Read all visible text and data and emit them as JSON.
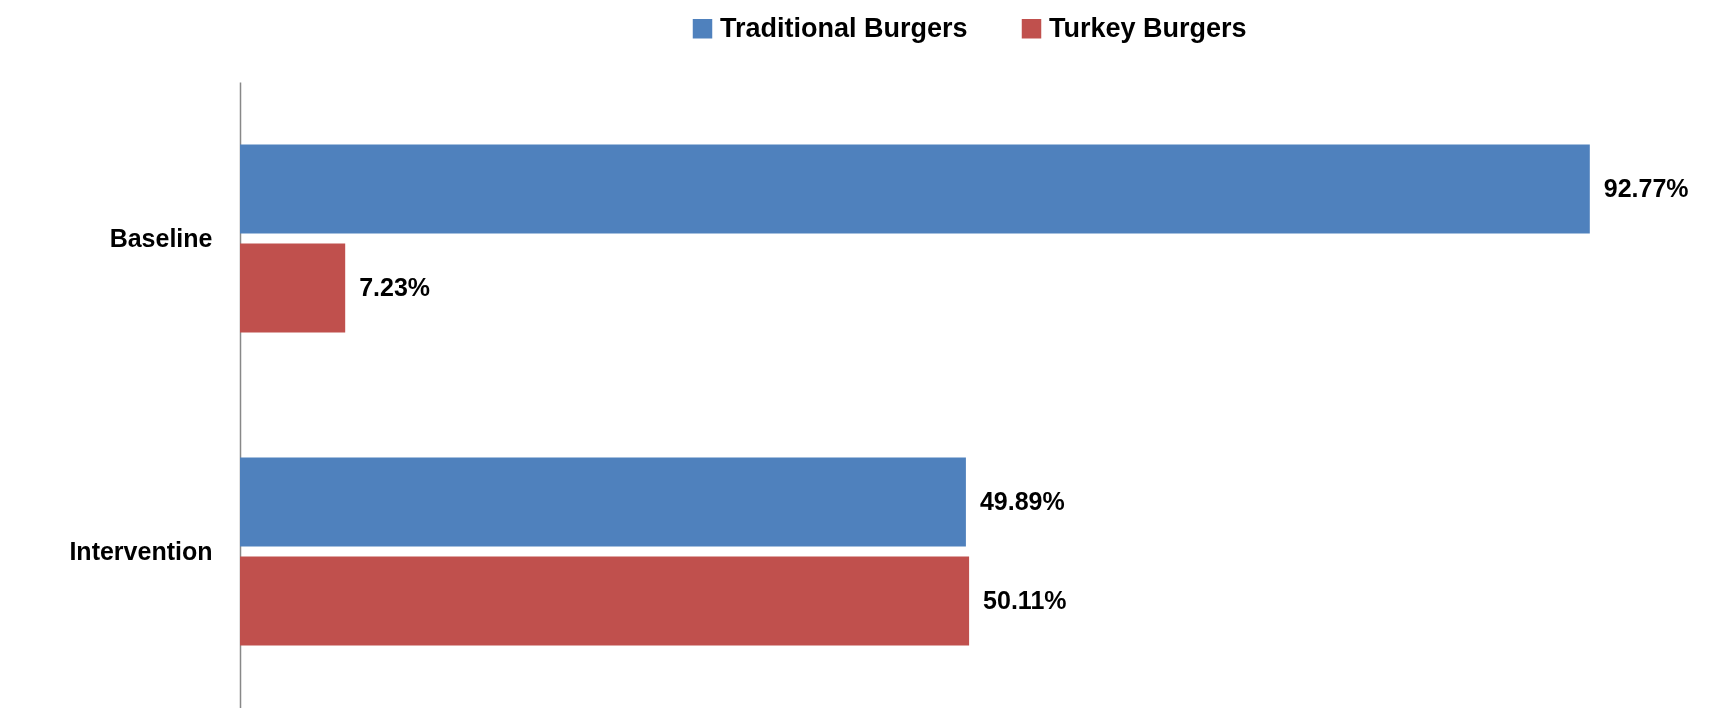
{
  "chart_data": {
    "type": "bar",
    "orientation": "horizontal",
    "categories": [
      "Baseline",
      "Intervention"
    ],
    "series": [
      {
        "name": "Traditional Burgers",
        "color": "#4f81bd",
        "values": [
          92.77,
          49.89
        ],
        "value_labels": [
          "92.77%",
          "49.89%"
        ]
      },
      {
        "name": "Turkey Burgers",
        "color": "#c0504d",
        "values": [
          7.23,
          50.11
        ],
        "value_labels": [
          "7.23%",
          "50.11%"
        ]
      }
    ],
    "legend": "top"
  }
}
